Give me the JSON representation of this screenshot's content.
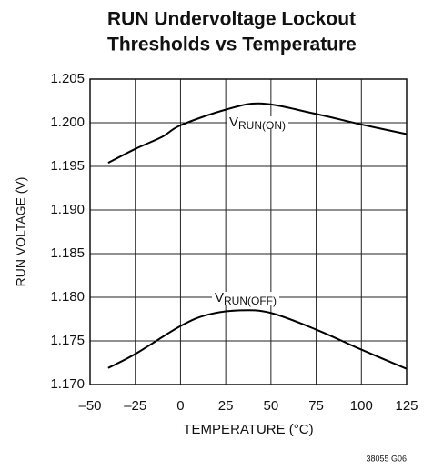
{
  "chart_data": {
    "type": "line",
    "title": [
      "RUN Undervoltage Lockout",
      "Thresholds vs Temperature"
    ],
    "x_label": "TEMPERATURE (°C)",
    "y_label": "RUN VOLTAGE (V)",
    "footnote": "38055 G06",
    "series": [
      {
        "label": {
          "main": "V",
          "sub": "RUN(ON)"
        },
        "color": "#000000",
        "x": [
          -40,
          -25,
          -10,
          0,
          25,
          45,
          75,
          100,
          125
        ],
        "values": [
          1.1954,
          1.197,
          1.1984,
          1.1997,
          1.2015,
          1.2022,
          1.201,
          1.1998,
          1.1987
        ]
      },
      {
        "label": {
          "main": "V",
          "sub": "RUN(OFF)"
        },
        "color": "#000000",
        "x": [
          -40,
          -25,
          0,
          15,
          33,
          50,
          75,
          100,
          125
        ],
        "values": [
          1.1719,
          1.1735,
          1.1767,
          1.178,
          1.1785,
          1.1782,
          1.1763,
          1.174,
          1.1718
        ]
      }
    ],
    "xlim": [
      -50,
      125
    ],
    "xticks": [
      {
        "value": -50,
        "label": "–50"
      },
      {
        "value": -25,
        "label": "–25"
      },
      0,
      25,
      50,
      75,
      100,
      125
    ],
    "ylim": [
      1.17,
      1.205
    ],
    "yticks": [
      {
        "value": 1.17,
        "label": "1.170"
      },
      1.175,
      {
        "value": 1.18,
        "label": "1.180"
      },
      1.185,
      {
        "value": 1.19,
        "label": "1.190"
      },
      1.195,
      {
        "value": 1.2,
        "label": "1.200"
      },
      1.205
    ],
    "grid": true
  }
}
